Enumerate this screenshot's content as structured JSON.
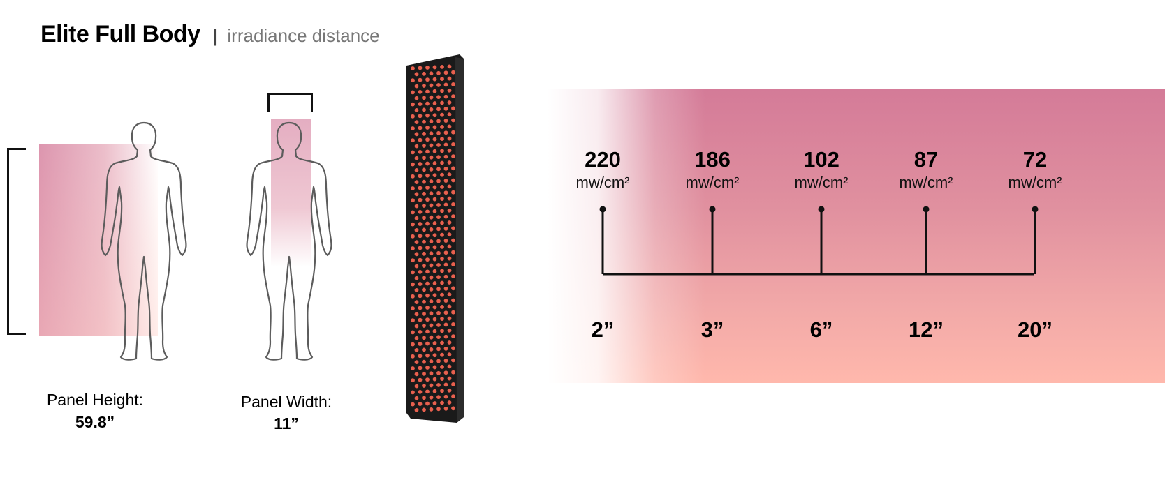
{
  "header": {
    "title": "Elite Full Body",
    "separator": "|",
    "subtitle": "irradiance distance"
  },
  "dimensions": {
    "height_label": "Panel Height:",
    "height_value": "59.8”",
    "width_label": "Panel Width:",
    "width_value": "11”"
  },
  "readings": [
    {
      "irradiance": "220",
      "unit": "mw/cm²",
      "distance": "2”"
    },
    {
      "irradiance": "186",
      "unit": "mw/cm²",
      "distance": "3”"
    },
    {
      "irradiance": "102",
      "unit": "mw/cm²",
      "distance": "6”"
    },
    {
      "irradiance": "87",
      "unit": "mw/cm²",
      "distance": "12”"
    },
    {
      "irradiance": "72",
      "unit": "mw/cm²",
      "distance": "20”"
    }
  ],
  "colors": {
    "gradient_top": "#d47b98",
    "gradient_bottom": "#ffb8ac",
    "led": "#e8604e",
    "panel": "#1a1a1a"
  },
  "icons": {
    "figure": "human-silhouette-icon",
    "panel": "led-panel-icon"
  }
}
